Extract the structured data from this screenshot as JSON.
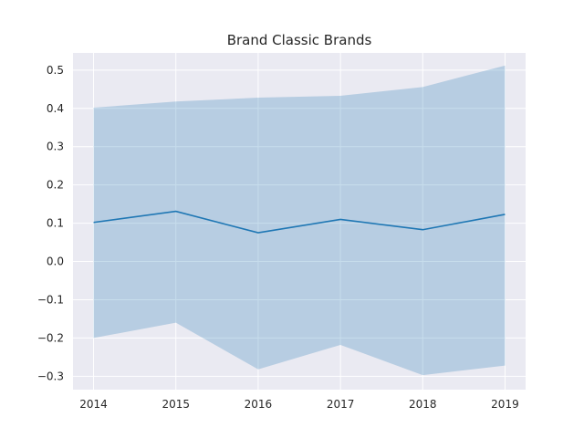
{
  "chart_data": {
    "type": "line",
    "title": "Brand Classic Brands",
    "xlabel": "",
    "ylabel": "",
    "x": [
      2014,
      2015,
      2016,
      2017,
      2018,
      2019
    ],
    "x_ticks": [
      "2014",
      "2015",
      "2016",
      "2017",
      "2018",
      "2019"
    ],
    "y_ticks": [
      "0.5",
      "0.4",
      "0.3",
      "0.2",
      "0.1",
      "0.0",
      "−0.1",
      "−0.2",
      "−0.3"
    ],
    "y_tick_values": [
      0.5,
      0.4,
      0.3,
      0.2,
      0.1,
      0.0,
      -0.1,
      -0.2,
      -0.3
    ],
    "xlim": [
      2013.75,
      2019.25
    ],
    "ylim": [
      -0.335,
      0.545
    ],
    "grid": true,
    "series": [
      {
        "values": [
          0.102,
          0.131,
          0.075,
          0.11,
          0.083,
          0.123
        ],
        "lower": [
          -0.2,
          -0.16,
          -0.282,
          -0.218,
          -0.297,
          -0.272
        ],
        "upper": [
          0.402,
          0.418,
          0.428,
          0.433,
          0.456,
          0.512
        ]
      }
    ],
    "colors": {
      "line": "#1f77b4",
      "band": "#a9c6e1",
      "background": "#eaeaf2",
      "grid": "#ffffff"
    }
  }
}
